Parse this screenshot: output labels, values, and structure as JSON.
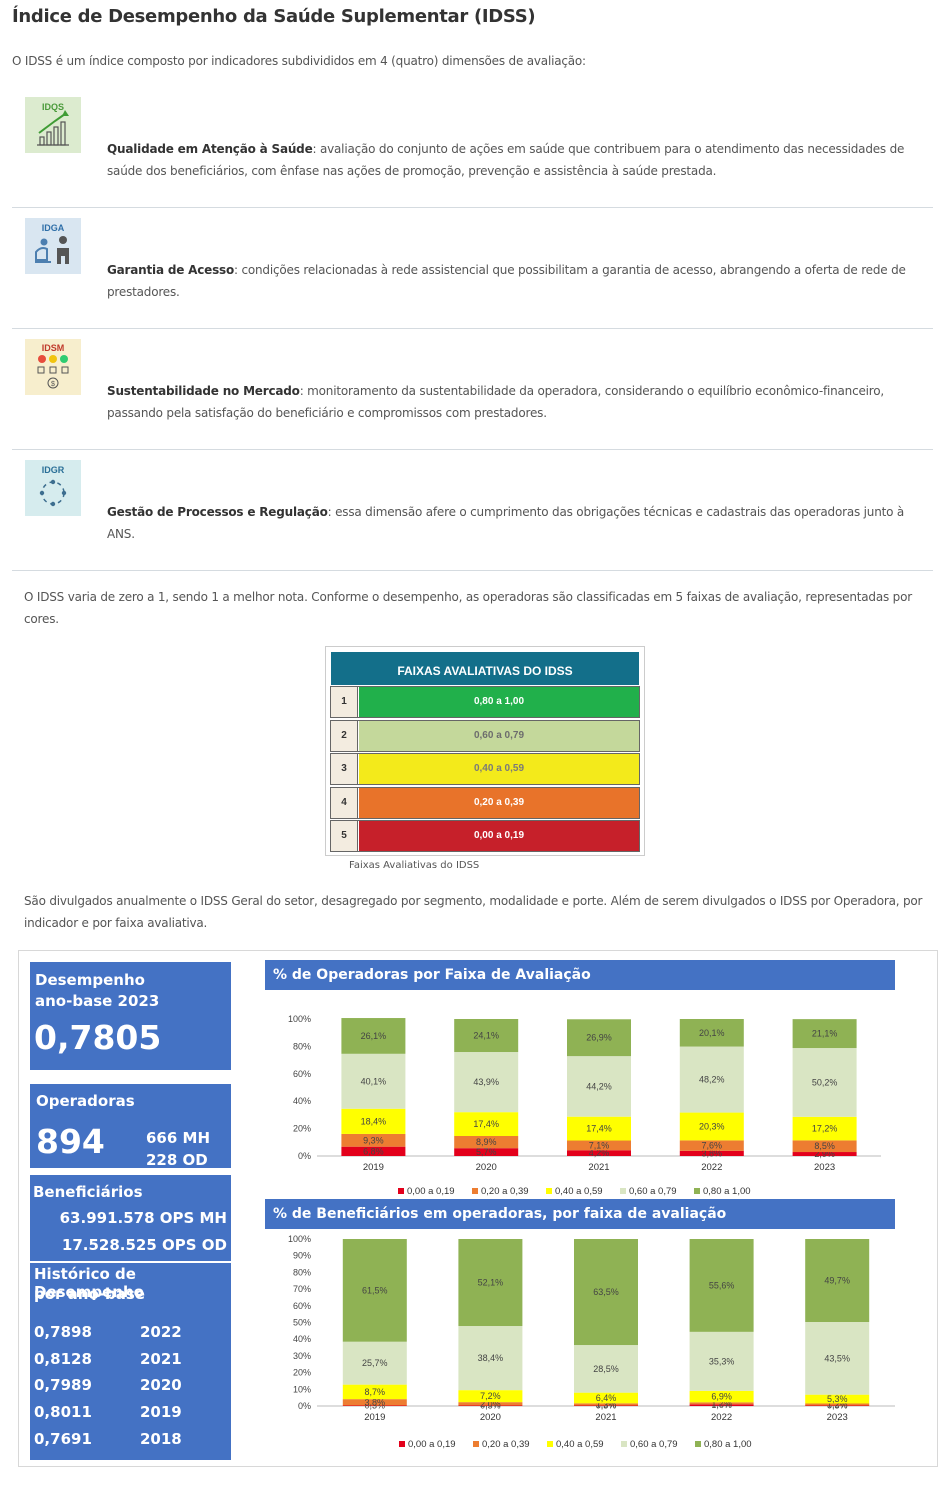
{
  "title": "Índice de Desempenho da Saúde Suplementar (IDSS)",
  "intro": "O IDSS é um índice composto por indicadores subdivididos em 4 (quatro) dimensões de avaliação:",
  "dimensions": [
    {
      "icon_label": "IDQS",
      "icon": "growth-chart-icon",
      "name": "Qualidade em Atenção à Saúde",
      "line1": ": avaliação do conjunto de ações em saúde que contribuem para o atendimento das necessidades de",
      "line2": "saúde dos beneficiários, com ênfase nas ações de promoção, prevenção e assistência à saúde prestada."
    },
    {
      "icon_label": "IDGA",
      "icon": "patient-doctor-icon",
      "name": "Garantia de Acesso",
      "line1": ": condições relacionadas à rede assistencial que possibilitam a garantia de acesso, abrangendo a oferta de rede de",
      "line2": "prestadores."
    },
    {
      "icon_label": "IDSM",
      "icon": "satisfaction-money-icon",
      "name": "Sustentabilidade no Mercado",
      "line1": ": monitoramento da sustentabilidade da operadora, considerando o equilíbrio econômico-financeiro,",
      "line2": "passando pela satisfação do beneficiário e compromissos com prestadores."
    },
    {
      "icon_label": "IDGR",
      "icon": "process-cycle-icon",
      "name": "Gestão de Processos e Regulação",
      "line1": ": essa dimensão afere o cumprimento das obrigações técnicas e cadastrais das operadoras junto à",
      "line2": "ANS."
    }
  ],
  "scale_text_1": "O IDSS varia de zero a 1, sendo 1 a melhor nota. Conforme o desempenho, as operadoras são classificadas em 5 faixas de avaliação, representadas por",
  "scale_text_2": "cores.",
  "faixas": {
    "header": "FAIXAS AVALIATIVAS DO IDSS",
    "rows": [
      {
        "num": "1",
        "range": "0,80 a 1,00",
        "color": "#21b04b",
        "text_color": "#ffffff"
      },
      {
        "num": "2",
        "range": "0,60 a 0,79",
        "color": "#c4d89b",
        "text_color": "#6d6d6d"
      },
      {
        "num": "3",
        "range": "0,40 a 0,59",
        "color": "#f3ea1b",
        "text_color": "#7a7a7a"
      },
      {
        "num": "4",
        "range": "0,20 a 0,39",
        "color": "#e8732a",
        "text_color": "#ffffff"
      },
      {
        "num": "5",
        "range": "0,00 a 0,19",
        "color": "#c6202a",
        "text_color": "#ffffff"
      }
    ],
    "caption": "Faixas Avaliativas do IDSS"
  },
  "divulgados_1": "São divulgados anualmente o IDSS Geral do setor, desagregado por segmento, modalidade e porte. Além de serem divulgados o IDSS por Operadora, por",
  "divulgados_2": "indicador e por faixa avaliativa.",
  "dashboard": {
    "desempenho": {
      "line1": "Desempenho",
      "line2": "ano-base 2023",
      "value": "0,7805"
    },
    "operadoras": {
      "label": "Operadoras",
      "total": "894",
      "mh": "666 MH",
      "od": "228 OD"
    },
    "beneficiarios": {
      "label": "Beneficiários",
      "mh": "63.991.578 OPS MH",
      "od": "17.528.525 OPS OD"
    },
    "historico": {
      "line1": "Histórico de Desempenho",
      "line2": "por ano-base",
      "rows": [
        {
          "value": "0,7898",
          "year": "2022"
        },
        {
          "value": "0,8128",
          "year": "2021"
        },
        {
          "value": "0,7989",
          "year": "2020"
        },
        {
          "value": "0,8011",
          "year": "2019"
        },
        {
          "value": "0,7691",
          "year": "2018"
        }
      ]
    }
  },
  "chart_data": [
    {
      "type": "bar",
      "stacked": true,
      "title": "% de Operadoras por Faixa de Avaliação",
      "categories": [
        "2019",
        "2020",
        "2021",
        "2022",
        "2023"
      ],
      "y_ticks": [
        "0%",
        "20%",
        "40%",
        "60%",
        "80%",
        "100%"
      ],
      "ylim": [
        0,
        100
      ],
      "legend_position": "bottom",
      "series": [
        {
          "name": "0,00 a 0,19",
          "color": "#e3001b",
          "values": [
            6.8,
            5.7,
            4.2,
            3.8,
            2.9
          ],
          "labels": [
            "6,8%",
            "5,7%",
            "4,2%",
            "3,8%",
            "2,9%"
          ]
        },
        {
          "name": "0,20 a 0,39",
          "color": "#ed7d31",
          "values": [
            9.3,
            8.9,
            7.1,
            7.6,
            8.5
          ],
          "labels": [
            "9,3%",
            "8,9%",
            "7,1%",
            "7,6%",
            "8,5%"
          ]
        },
        {
          "name": "0,40 a 0,59",
          "color": "#ffff00",
          "values": [
            18.4,
            17.4,
            17.4,
            20.3,
            17.2
          ],
          "labels": [
            "18,4%",
            "17,4%",
            "17,4%",
            "20,3%",
            "17,2%"
          ]
        },
        {
          "name": "0,60 a 0,79",
          "color": "#d9e5c3",
          "values": [
            40.1,
            43.9,
            44.2,
            48.2,
            50.2
          ],
          "labels": [
            "40,1%",
            "43,9%",
            "44,2%",
            "48,2%",
            "50,2%"
          ]
        },
        {
          "name": "0,80 a 1,00",
          "color": "#8fb254",
          "values": [
            26.1,
            24.1,
            26.9,
            20.1,
            21.1
          ],
          "labels": [
            "26,1%",
            "24,1%",
            "26,9%",
            "20,1%",
            "21,1%"
          ]
        }
      ]
    },
    {
      "type": "bar",
      "stacked": true,
      "title": "% de Beneficiários em operadoras, por faixa de avaliação",
      "categories": [
        "2019",
        "2020",
        "2021",
        "2022",
        "2023"
      ],
      "y_ticks": [
        "0%",
        "10%",
        "20%",
        "30%",
        "40%",
        "50%",
        "60%",
        "70%",
        "80%",
        "90%",
        "100%"
      ],
      "ylim": [
        0,
        100
      ],
      "legend_position": "bottom",
      "series": [
        {
          "name": "0,00 a 0,19",
          "color": "#e3001b",
          "values": [
            0.3,
            0.3,
            0.3,
            1.0,
            0.3
          ],
          "labels": [
            "0,3%",
            "0,3%",
            "0,3%",
            "1,0%",
            "0,3%"
          ]
        },
        {
          "name": "0,20 a 0,39",
          "color": "#ed7d31",
          "values": [
            3.8,
            2.0,
            1.3,
            1.2,
            1.2
          ],
          "labels": [
            "3,8%",
            "2,0%",
            "1,3%",
            "1,2%",
            "1,2%"
          ]
        },
        {
          "name": "0,40 a 0,59",
          "color": "#ffff00",
          "values": [
            8.7,
            7.2,
            6.4,
            6.9,
            5.3
          ],
          "labels": [
            "8,7%",
            "7,2%",
            "6,4%",
            "6,9%",
            "5,3%"
          ]
        },
        {
          "name": "0,60 a 0,79",
          "color": "#d9e5c3",
          "values": [
            25.7,
            38.4,
            28.5,
            35.3,
            43.5
          ],
          "labels": [
            "25,7%",
            "38,4%",
            "28,5%",
            "35,3%",
            "43,5%"
          ]
        },
        {
          "name": "0,80 a 1,00",
          "color": "#8fb254",
          "values": [
            61.5,
            52.1,
            63.5,
            55.6,
            49.7
          ],
          "labels": [
            "61,5%",
            "52,1%",
            "63,5%",
            "55,6%",
            "49,7%"
          ]
        }
      ]
    }
  ]
}
